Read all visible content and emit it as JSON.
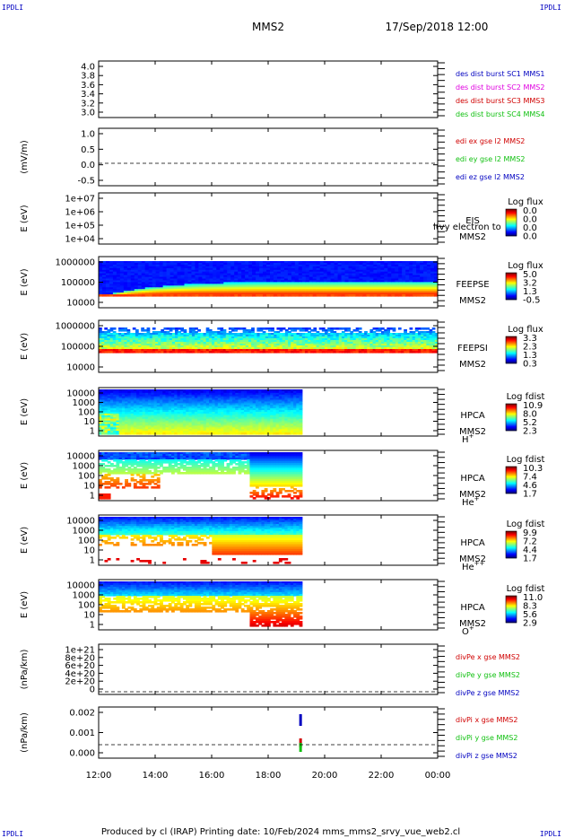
{
  "header": {
    "corner_label": "IPDLI",
    "spacecraft": "MMS2",
    "datetime": "17/Sep/2018 12:00"
  },
  "footer": {
    "text": "Produced by cl (IRAP)   Printing date: 10/Feb/2024   mms_mms2_srvy_vue_web2.cl"
  },
  "time_axis": {
    "ticks": [
      "12:00",
      "14:00",
      "16:00",
      "18:00",
      "20:00",
      "22:00",
      "00:00"
    ],
    "range_hours": [
      12,
      24
    ]
  },
  "colors": {
    "red": "#d00000",
    "magenta": "#e000e0",
    "green": "#10c010",
    "blue": "#0000c0"
  },
  "panels": [
    {
      "id": "dist",
      "ylabel": "",
      "yticks": [
        "4.0",
        "3.8",
        "3.6",
        "3.4",
        "3.2",
        "3.0"
      ],
      "legend": [
        {
          "text": "des dist burst SC1 MMS1",
          "color": "#0000c0"
        },
        {
          "text": "des dist burst SC2 MMS2",
          "color": "#e000e0"
        },
        {
          "text": "des dist burst SC3 MMS3",
          "color": "#d00000"
        },
        {
          "text": "des dist burst SC4 MMS4",
          "color": "#10c010"
        }
      ]
    },
    {
      "id": "edi",
      "ylabel": "(mV/m)",
      "yticks": [
        "1.0",
        "0.5",
        "0.0",
        "-0.5"
      ],
      "legend": [
        {
          "text": "edi ex gse l2 MMS2",
          "color": "#d00000"
        },
        {
          "text": "edi ey gse l2 MMS2",
          "color": "#10c010"
        },
        {
          "text": "edi ez gse l2 MMS2",
          "color": "#0000c0"
        }
      ]
    },
    {
      "id": "eis",
      "ylabel": "E (eV)",
      "yticks": [
        "1e+07",
        "1e+06",
        "1e+05",
        "1e+04"
      ],
      "instrument": [
        "EIS",
        "MMS2"
      ],
      "overlay": "l(vy electron to",
      "cbar_title": "Log flux",
      "cbar_ticks": [
        "0.0",
        "0.0",
        "0.0",
        "0.0"
      ]
    },
    {
      "id": "feepse",
      "ylabel": "E (eV)",
      "yticks": [
        "1000000",
        "100000",
        "10000"
      ],
      "instrument": [
        "FEEPSE",
        "MMS2"
      ],
      "cbar_title": "Log flux",
      "cbar_ticks": [
        "5.0",
        "3.2",
        "1.3",
        "-0.5"
      ]
    },
    {
      "id": "feepsi",
      "ylabel": "E (eV)",
      "yticks": [
        "1000000",
        "100000",
        "10000"
      ],
      "instrument": [
        "FEEPSI",
        "MMS2"
      ],
      "cbar_title": "Log flux",
      "cbar_ticks": [
        "3.3",
        "2.3",
        "1.3",
        "0.3"
      ]
    },
    {
      "id": "hpca_h",
      "ylabel": "E (eV)",
      "yticks": [
        "10000",
        "1000",
        "100",
        "10",
        "1"
      ],
      "instrument": [
        "HPCA",
        "MMS2"
      ],
      "species": "H",
      "species_sup": "+",
      "cbar_title": "Log fdist",
      "cbar_ticks": [
        "10.9",
        "8.0",
        "5.2",
        "2.3"
      ]
    },
    {
      "id": "hpca_he",
      "ylabel": "E (eV)",
      "yticks": [
        "10000",
        "1000",
        "100",
        "10",
        "1"
      ],
      "instrument": [
        "HPCA",
        "MMS2"
      ],
      "species": "He",
      "species_sup": "+",
      "cbar_title": "Log fdist",
      "cbar_ticks": [
        "10.3",
        "7.4",
        "4.6",
        "1.7"
      ]
    },
    {
      "id": "hpca_hepp",
      "ylabel": "E (eV)",
      "yticks": [
        "10000",
        "1000",
        "100",
        "10",
        "1"
      ],
      "instrument": [
        "HPCA",
        "MMS2"
      ],
      "species": "He",
      "species_sup": "++",
      "cbar_title": "Log fdist",
      "cbar_ticks": [
        "9.9",
        "7.2",
        "4.4",
        "1.7"
      ]
    },
    {
      "id": "hpca_o",
      "ylabel": "E (eV)",
      "yticks": [
        "10000",
        "1000",
        "100",
        "10",
        "1"
      ],
      "instrument": [
        "HPCA",
        "MMS2"
      ],
      "species": "O",
      "species_sup": "+",
      "cbar_title": "Log fdist",
      "cbar_ticks": [
        "11.0",
        "8.3",
        "5.6",
        "2.9"
      ]
    },
    {
      "id": "divpe",
      "ylabel": "(nPa/km)",
      "yticks": [
        "1e+21",
        "8e+20",
        "6e+20",
        "4e+20",
        "2e+20",
        "0"
      ],
      "legend": [
        {
          "text": "divPe x gse MMS2",
          "color": "#d00000"
        },
        {
          "text": "divPe y gse MMS2",
          "color": "#10c010"
        },
        {
          "text": "divPe z gse MMS2",
          "color": "#0000c0"
        }
      ]
    },
    {
      "id": "divpi",
      "ylabel": "(nPa/km)",
      "yticks": [
        "0.002",
        "0.001",
        "0.000"
      ],
      "legend": [
        {
          "text": "divPi x gse MMS2",
          "color": "#d00000"
        },
        {
          "text": "divPi y gse MMS2",
          "color": "#10c010"
        },
        {
          "text": "divPi z gse MMS2",
          "color": "#0000c0"
        }
      ]
    }
  ],
  "chart_data": {
    "type": "heatmap",
    "title": "MMS2",
    "x_unit": "UT hours",
    "x_range": [
      12,
      24
    ],
    "series": [
      {
        "name": "FEEPSE",
        "coverage_hours": [
          12,
          24
        ]
      },
      {
        "name": "FEEPSI",
        "coverage_hours": [
          12,
          24
        ]
      },
      {
        "name": "HPCA H+",
        "coverage_hours": [
          12,
          19.2
        ]
      },
      {
        "name": "HPCA He+",
        "coverage_hours": [
          12,
          19.2
        ]
      },
      {
        "name": "HPCA He++",
        "coverage_hours": [
          12,
          19.2
        ]
      },
      {
        "name": "HPCA O+",
        "coverage_hours": [
          12,
          19.2
        ]
      }
    ],
    "divPi_spike_hour": 19.1
  }
}
